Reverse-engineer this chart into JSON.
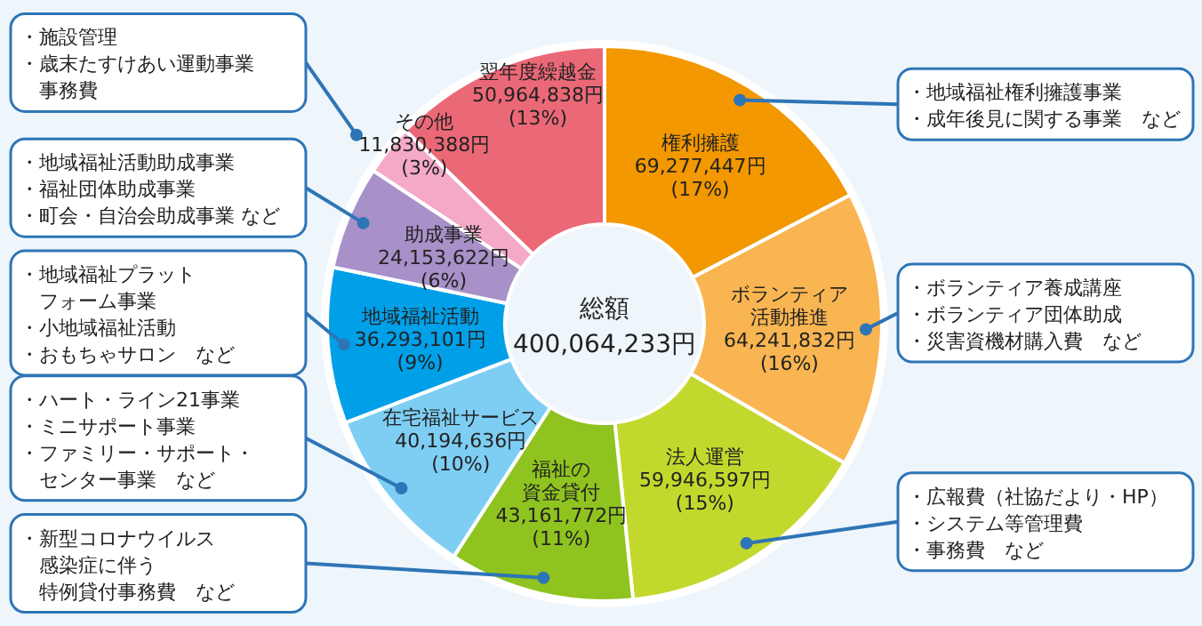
{
  "chart_data": {
    "type": "donut",
    "categories": [
      "権利擁護",
      "ボランティア活動推進",
      "法人運営",
      "福祉の資金貸付",
      "在宅福祉サービス",
      "地域福祉活動",
      "助成事業",
      "その他",
      "翌年度繰越金"
    ],
    "values": [
      69277447,
      64241832,
      59946597,
      43161772,
      40194636,
      36293101,
      24153622,
      11830388,
      50964838
    ],
    "value_labels": [
      "69,277,447円\n(17%)",
      "64,241,832円\n(16%)",
      "59,946,597円\n(15%)",
      "43,161,772円\n(11%)",
      "40,194,636円\n(10%)",
      "36,293,101円\n(9%)",
      "24,153,622円\n(6%)",
      "11,830,388円\n(3%)",
      "50,964,838円\n(13%)"
    ],
    "colors": [
      "#f39800",
      "#f8b551",
      "#c3d82c",
      "#8fc31f",
      "#7ecef4",
      "#00a0e9",
      "#a890c8",
      "#f4a9c8",
      "#eb6877"
    ],
    "annotations": [
      "総額\n400,064,233円",
      {
        "text": "・地域福祉権利擁護事業・成年後見に関する事業　など",
        "x": "権利擁護"
      },
      {
        "text": "・ボランティア養成講座・ボランティア団体助成・災害資機材購入費　など",
        "x": "ボランティア活動推進"
      },
      {
        "text": "・広報費（社協だより・HP）・システム等管理費・事務費　など",
        "x": "法人運営"
      },
      {
        "text": "・新型コロナウイルス感染症に伴う特例貸付事務費　など",
        "x": "福祉の資金貸付"
      },
      {
        "text": "・ハート・ライン21事業・ミニサポート事業・ファミリー・サポート・センター事業　など",
        "x": "在宅福祉サービス"
      },
      {
        "text": "・地域福祉プラットフォーム事業・小地域福祉活動・おもちゃサロン　など",
        "x": "地域福祉活動"
      },
      {
        "text": "・地域福祉活動助成事業・福祉団体助成事業・町会・自治会助成事業 など",
        "x": "助成事業"
      },
      {
        "text": "・施設管理・歳末たすけあい運動事業事務費",
        "x": "その他"
      }
    ]
  }
}
